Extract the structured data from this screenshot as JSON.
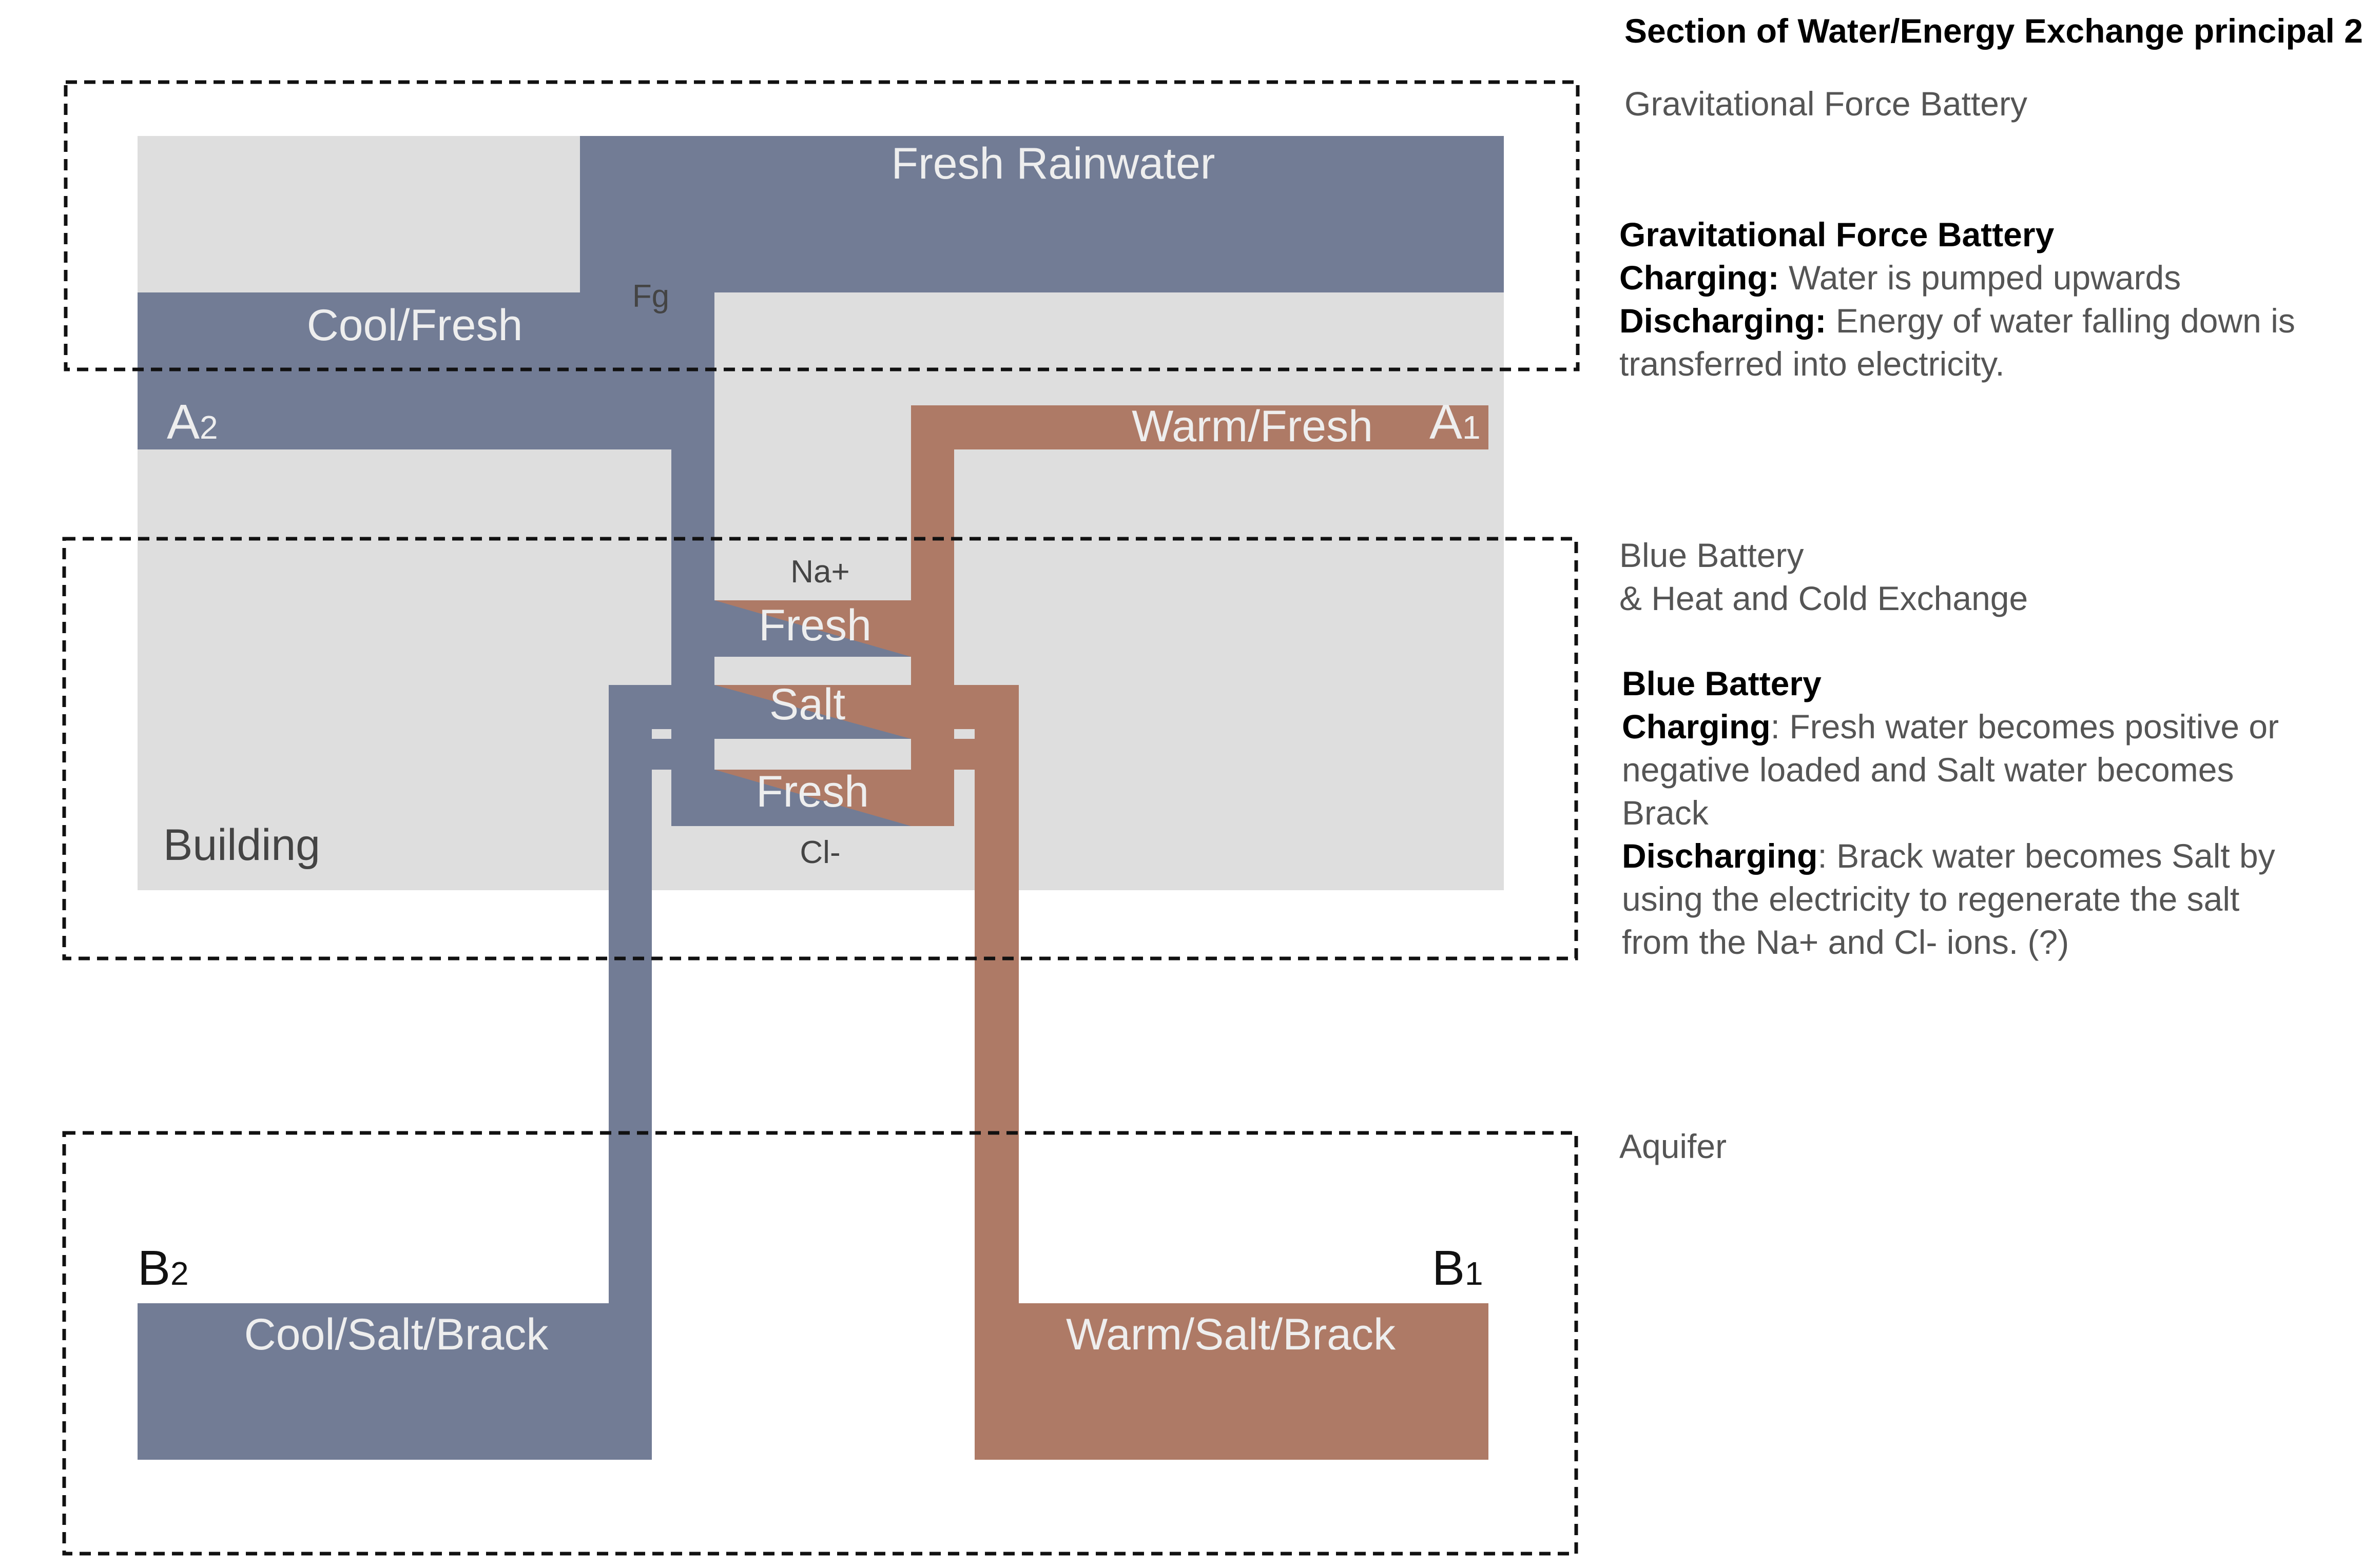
{
  "colors": {
    "building": "#dedede",
    "cool": "#727c95",
    "warm": "#ae7a66",
    "label_light": "#eeeeee",
    "text_dark": "#444444",
    "heading": "#000000",
    "body_text": "#555555"
  },
  "title": "Section of Water/Energy Exchange principal 2",
  "diagram": {
    "fresh_rainwater": "Fresh Rainwater",
    "cool_fresh": "Cool/Fresh",
    "fg": "Fg",
    "a2_main": "A",
    "a2_sub": "2",
    "a1_main": "A",
    "a1_sub": "1",
    "warm_fresh": "Warm/Fresh",
    "na_plus": "Na+",
    "fresh_top": "Fresh",
    "salt": "Salt",
    "fresh_bottom": "Fresh",
    "cl_minus": "Cl-",
    "building": "Building",
    "b2_main": "B",
    "b2_sub": "2",
    "b1_main": "B",
    "b1_sub": "1",
    "cool_salt_brack": "Cool/Salt/Brack",
    "warm_salt_brack": "Warm/Salt/Brack"
  },
  "sections": {
    "gravity": {
      "zone_label": "Gravitational Force Battery",
      "heading": "Gravitational Force Battery",
      "charging_label": "Charging:",
      "charging_text": " Water is pumped upwards",
      "discharging_label": "Discharging:",
      "discharging_text": " Energy of water falling down is transferred into electricity."
    },
    "blue": {
      "zone_label_1": "Blue Battery",
      "zone_label_2": "& Heat and Cold Exchange",
      "heading": "Blue Battery",
      "charging_label": "Charging",
      "charging_text": ": Fresh water becomes positive or negative loaded and Salt water becomes Brack",
      "discharging_label": "Discharging",
      "discharging_text": ": Brack water becomes Salt by using the electricity to regenerate the salt from the Na+ and Cl- ions. (?)"
    },
    "aquifer": {
      "zone_label": "Aquifer"
    }
  }
}
